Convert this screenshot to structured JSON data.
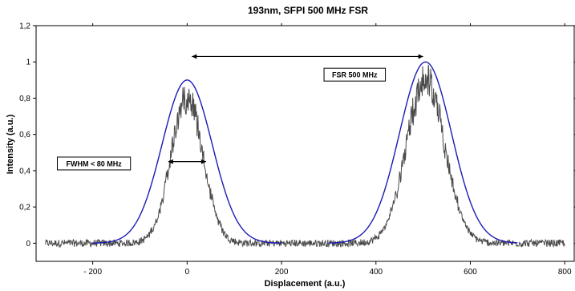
{
  "chart_data": {
    "type": "line",
    "title": "193nm, SFPI 500 MHz FSR",
    "xlabel": "Displacement (a.u.)",
    "ylabel": "Intensity (a.u.)",
    "xlim": [
      -320,
      820
    ],
    "ylim": [
      -0.1,
      1.2
    ],
    "x_ticks": [
      {
        "value": -200,
        "label": "- 200"
      },
      {
        "value": 0,
        "label": "0"
      },
      {
        "value": 200,
        "label": "200"
      },
      {
        "value": 400,
        "label": "400"
      },
      {
        "value": 600,
        "label": "600"
      },
      {
        "value": 800,
        "label": "800"
      }
    ],
    "y_ticks": [
      {
        "value": 0,
        "label": "0"
      },
      {
        "value": 0.2,
        "label": "0,2"
      },
      {
        "value": 0.4,
        "label": "0,4"
      },
      {
        "value": 0.6,
        "label": "0,6"
      },
      {
        "value": 0.8,
        "label": "0,8"
      },
      {
        "value": 1.0,
        "label": "1"
      },
      {
        "value": 1.2,
        "label": "1,2"
      }
    ],
    "grid": false,
    "series": [
      {
        "kind": "measured",
        "color": "#4a4a4a",
        "x_range": [
          -300,
          800
        ],
        "baseline": 0.0,
        "noise": 0.02,
        "peaks": [
          {
            "center": 0,
            "height": 0.9,
            "fwhm": 80
          },
          {
            "center": 505,
            "height": 1.0,
            "fwhm": 95
          }
        ]
      },
      {
        "kind": "gaussian-fit",
        "color": "#1c1cb4",
        "segments": [
          {
            "x_range": [
              -200,
              200
            ],
            "center": 0,
            "height": 0.9,
            "fwhm": 125
          },
          {
            "x_range": [
              300,
              700
            ],
            "center": 505,
            "height": 1.0,
            "fwhm": 130
          }
        ]
      }
    ],
    "annotations": [
      {
        "text": "FSR 500 MHz",
        "arrow_x": [
          10,
          500
        ],
        "arrow_y": 1.03,
        "box_x": [
          290,
          420
        ],
        "box_y": 0.965
      },
      {
        "text": "FWHM < 80 MHz",
        "arrow_x": [
          -40,
          40
        ],
        "arrow_y": 0.45,
        "box_x": [
          -275,
          -120
        ],
        "box_y": 0.475
      }
    ]
  }
}
